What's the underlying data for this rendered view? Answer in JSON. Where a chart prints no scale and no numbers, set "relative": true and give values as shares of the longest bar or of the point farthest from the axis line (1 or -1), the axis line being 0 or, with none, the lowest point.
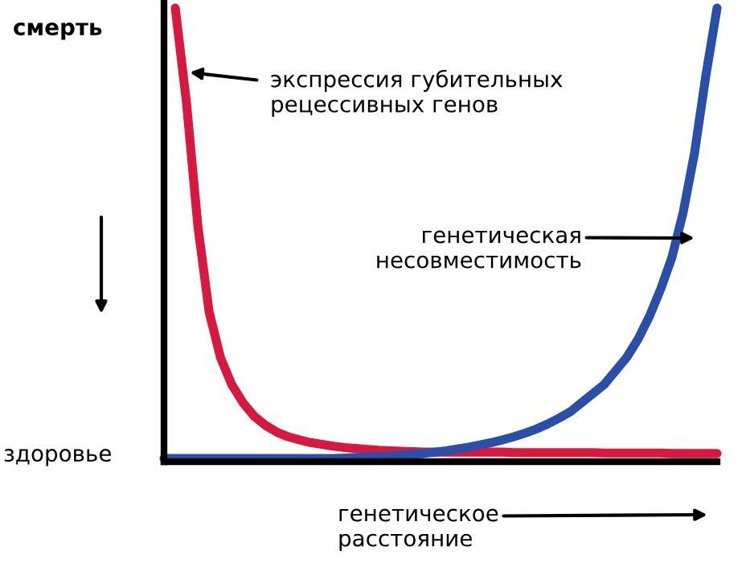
{
  "chart_data": {
    "type": "line",
    "relative": true,
    "categories": [
      null,
      null,
      null,
      null,
      null,
      null,
      null,
      null,
      null,
      null,
      null,
      null,
      null,
      null,
      null,
      null,
      null,
      null,
      null,
      null,
      null,
      null,
      null,
      null,
      null,
      null,
      null,
      null,
      null,
      null,
      null,
      null,
      null,
      null,
      null,
      null,
      null,
      null,
      null,
      null,
      null,
      null,
      null,
      null,
      null,
      null,
      null,
      null,
      null,
      null
    ],
    "series": [
      {
        "color": "#d7193f",
        "values": [
          null,
          1.0,
          0.79,
          0.52,
          0.33,
          0.23,
          0.17,
          0.13,
          0.1,
          0.08,
          0.065,
          0.055,
          0.048,
          0.042,
          0.038,
          0.034,
          0.031,
          0.029,
          0.027,
          0.025,
          0.024,
          0.023,
          0.022,
          0.021,
          0.021,
          0.021,
          0.021,
          0.021,
          0.021,
          0.021,
          0.021,
          0.02,
          0.02,
          0.02,
          0.02,
          0.02,
          0.02,
          0.02,
          0.02,
          0.019,
          0.019,
          0.019,
          0.019,
          0.019,
          0.019,
          0.018,
          0.018,
          0.018,
          0.018,
          0.018
        ]
      },
      {
        "color": "#2a4fa8",
        "values": [
          0.007,
          0.007,
          0.007,
          0.007,
          0.007,
          0.007,
          0.007,
          0.007,
          0.007,
          0.007,
          0.007,
          0.007,
          0.007,
          0.007,
          0.007,
          0.007,
          0.008,
          0.009,
          0.01,
          0.011,
          0.012,
          0.014,
          0.016,
          0.018,
          0.021,
          0.024,
          0.028,
          0.032,
          0.037,
          0.042,
          0.048,
          0.055,
          0.063,
          0.072,
          0.083,
          0.096,
          0.11,
          0.13,
          0.15,
          0.17,
          0.2,
          0.23,
          0.27,
          0.32,
          0.38,
          0.45,
          0.55,
          0.68,
          0.85,
          1.0
        ]
      }
    ],
    "annotations": [
      "смерть",
      "здоровье",
      "экспрессия губительных\nрецессивных генов",
      "генетическая\nнесовместимость",
      "генетическое\nрасстояние"
    ],
    "marker": "none",
    "line_style": "solid"
  }
}
